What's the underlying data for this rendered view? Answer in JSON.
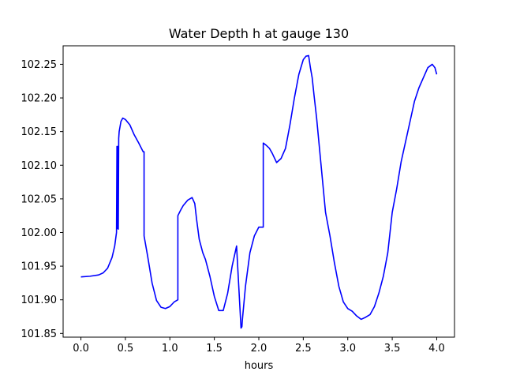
{
  "chart_data": {
    "type": "line",
    "title": "Water Depth h at gauge 130",
    "xlabel": "hours",
    "ylabel": "",
    "xlim": [
      -0.2,
      4.2
    ],
    "ylim": [
      101.8445,
      102.2775
    ],
    "xticks": [
      0.0,
      0.5,
      1.0,
      1.5,
      2.0,
      2.5,
      3.0,
      3.5,
      4.0
    ],
    "xtick_labels": [
      "0.0",
      "0.5",
      "1.0",
      "1.5",
      "2.0",
      "2.5",
      "3.0",
      "3.5",
      "4.0"
    ],
    "yticks": [
      101.85,
      101.9,
      101.95,
      102.0,
      102.05,
      102.1,
      102.15,
      102.2,
      102.25
    ],
    "ytick_labels": [
      "101.85",
      "101.90",
      "101.95",
      "102.00",
      "102.05",
      "102.10",
      "102.15",
      "102.20",
      "102.25"
    ],
    "grid": false,
    "series": [
      {
        "color": "#0000ff",
        "x": [
          0.0,
          0.1,
          0.2,
          0.25,
          0.3,
          0.35,
          0.38,
          0.4,
          0.405,
          0.41,
          0.415,
          0.42,
          0.425,
          0.43,
          0.45,
          0.47,
          0.5,
          0.55,
          0.6,
          0.65,
          0.7,
          0.71,
          0.71,
          0.75,
          0.8,
          0.85,
          0.9,
          0.95,
          1.0,
          1.05,
          1.09,
          1.09,
          1.12,
          1.15,
          1.2,
          1.25,
          1.28,
          1.3,
          1.33,
          1.37,
          1.4,
          1.45,
          1.5,
          1.55,
          1.6,
          1.65,
          1.7,
          1.75,
          1.8,
          1.81,
          1.815,
          1.85,
          1.9,
          1.95,
          2.0,
          2.05,
          2.05,
          2.08,
          2.12,
          2.15,
          2.2,
          2.25,
          2.3,
          2.35,
          2.4,
          2.45,
          2.5,
          2.53,
          2.56,
          2.58,
          2.6,
          2.62,
          2.65,
          2.7,
          2.75,
          2.8,
          2.85,
          2.9,
          2.95,
          3.0,
          3.05,
          3.1,
          3.15,
          3.2,
          3.25,
          3.3,
          3.35,
          3.4,
          3.45,
          3.5,
          3.55,
          3.6,
          3.65,
          3.7,
          3.75,
          3.8,
          3.85,
          3.9,
          3.95,
          3.98,
          4.0
        ],
        "y": [
          101.934,
          101.935,
          101.937,
          101.94,
          101.947,
          101.963,
          101.98,
          102.0,
          102.128,
          102.006,
          102.128,
          102.005,
          102.14,
          102.15,
          102.165,
          102.17,
          102.168,
          102.16,
          102.145,
          102.133,
          102.12,
          102.12,
          101.995,
          101.965,
          101.925,
          101.899,
          101.889,
          101.887,
          101.89,
          101.897,
          101.9,
          102.025,
          102.033,
          102.04,
          102.048,
          102.052,
          102.043,
          102.02,
          101.99,
          101.97,
          101.96,
          101.935,
          101.905,
          101.884,
          101.884,
          101.91,
          101.95,
          101.98,
          101.858,
          101.86,
          101.87,
          101.92,
          101.97,
          101.995,
          102.008,
          102.008,
          102.133,
          102.13,
          102.125,
          102.118,
          102.104,
          102.11,
          102.125,
          102.16,
          102.2,
          102.235,
          102.257,
          102.262,
          102.263,
          102.245,
          102.23,
          102.205,
          102.17,
          102.1,
          102.03,
          101.995,
          101.955,
          101.92,
          101.897,
          101.887,
          101.883,
          101.876,
          101.871,
          101.874,
          101.878,
          101.89,
          101.91,
          101.935,
          101.97,
          102.03,
          102.065,
          102.105,
          102.135,
          102.165,
          102.195,
          102.215,
          102.23,
          102.245,
          102.25,
          102.245,
          102.235
        ]
      }
    ]
  }
}
